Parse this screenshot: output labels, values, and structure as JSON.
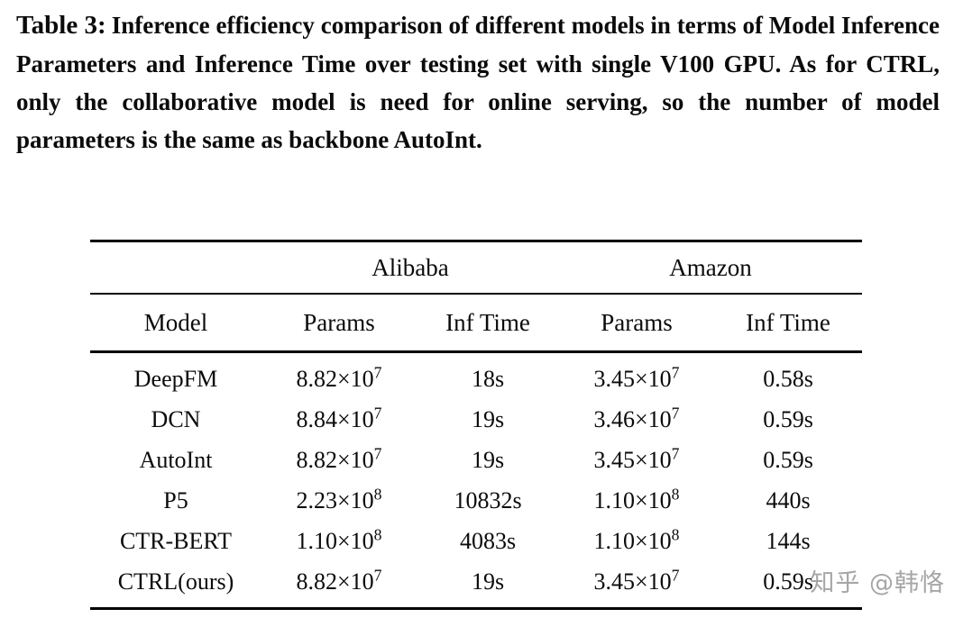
{
  "caption": {
    "label": "Table 3:",
    "text": "Inference efficiency comparison of different models in terms of Model Inference Parameters and Inference Time over testing set with single V100 GPU. As for CTRL, only the collaborative model is need for online serving, so the number of model parameters is the same as backbone AutoInt."
  },
  "table": {
    "group_headers": [
      "Alibaba",
      "Amazon"
    ],
    "columns": [
      "Model",
      "Params",
      "Inf Time",
      "Params",
      "Inf Time"
    ],
    "rows": [
      {
        "model": "DeepFM",
        "ali_params_base": "8.82×10",
        "ali_params_exp": "7",
        "ali_time": "18s",
        "amz_params_base": "3.45×10",
        "amz_params_exp": "7",
        "amz_time": "0.58s"
      },
      {
        "model": "DCN",
        "ali_params_base": "8.84×10",
        "ali_params_exp": "7",
        "ali_time": "19s",
        "amz_params_base": "3.46×10",
        "amz_params_exp": "7",
        "amz_time": "0.59s"
      },
      {
        "model": "AutoInt",
        "ali_params_base": "8.82×10",
        "ali_params_exp": "7",
        "ali_time": "19s",
        "amz_params_base": "3.45×10",
        "amz_params_exp": "7",
        "amz_time": "0.59s"
      },
      {
        "model": "P5",
        "ali_params_base": "2.23×10",
        "ali_params_exp": "8",
        "ali_time": "10832s",
        "amz_params_base": "1.10×10",
        "amz_params_exp": "8",
        "amz_time": "440s"
      },
      {
        "model": "CTR-BERT",
        "ali_params_base": "1.10×10",
        "ali_params_exp": "8",
        "ali_time": "4083s",
        "amz_params_base": "1.10×10",
        "amz_params_exp": "8",
        "amz_time": "144s"
      },
      {
        "model": "CTRL(ours)",
        "ali_params_base": "8.82×10",
        "ali_params_exp": "7",
        "ali_time": "19s",
        "amz_params_base": "3.45×10",
        "amz_params_exp": "7",
        "amz_time": "0.59s"
      }
    ]
  },
  "watermark": {
    "text": "知乎 @韩恪"
  }
}
